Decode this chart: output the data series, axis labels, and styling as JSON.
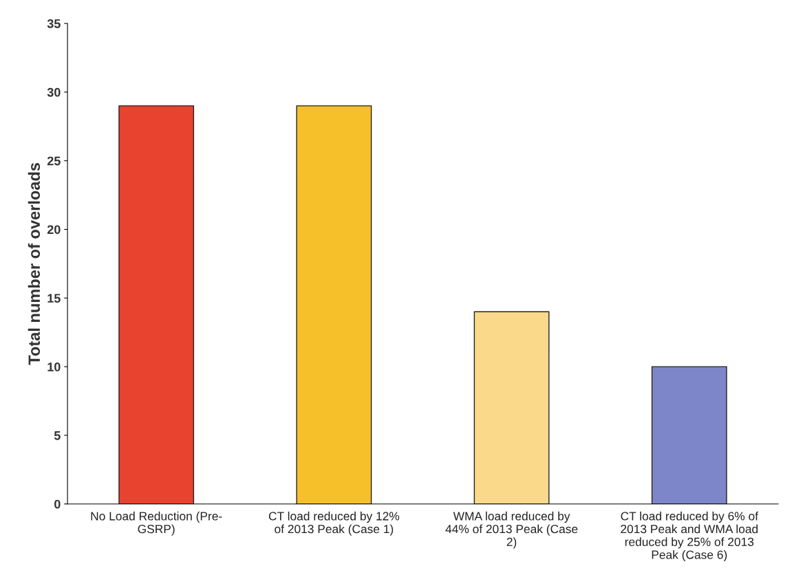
{
  "chart_data": {
    "type": "bar",
    "ylabel": "Total number of overloads",
    "categories": [
      "No Load Reduction (Pre-\nGSRP)",
      "CT load reduced by 12%\nof 2013 Peak (Case 1)",
      "WMA load reduced by\n44% of 2013 Peak (Case\n2)",
      "CT load reduced by 6% of\n2013 Peak and WMA load\nreduced by 25% of 2013\nPeak (Case 6)"
    ],
    "values": [
      29,
      29,
      14,
      10
    ],
    "colors": [
      "#e8432e",
      "#f5c02a",
      "#fbd98a",
      "#7d86c8"
    ],
    "ylim": [
      0,
      35
    ],
    "yticks": [
      0,
      5,
      10,
      15,
      20,
      25,
      30,
      35
    ],
    "grid": false
  }
}
